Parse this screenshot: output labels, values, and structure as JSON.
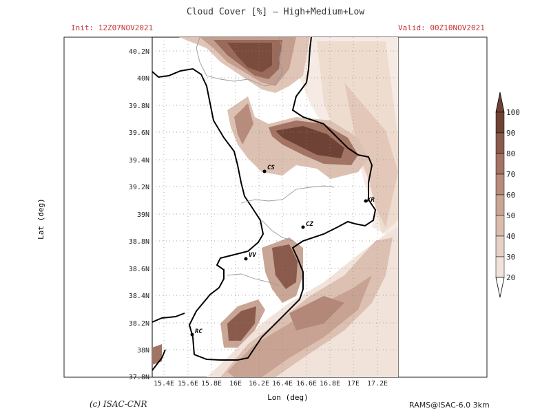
{
  "header": {
    "title": "Cloud Cover [%] — High+Medium+Low",
    "init": "Init: 12Z07NOV2021",
    "valid": "Valid: 00Z10NOV2021"
  },
  "axes": {
    "xlabel": "Lon (deg)",
    "ylabel": "Lat (deg)",
    "lon_ticks": [
      "15.4E",
      "15.6E",
      "15.8E",
      "16E",
      "16.2E",
      "16.4E",
      "16.6E",
      "16.8E",
      "17E",
      "17.2E"
    ],
    "lat_ticks": [
      "40.2N",
      "40N",
      "39.8N",
      "39.6N",
      "39.4N",
      "39.2N",
      "39N",
      "38.8N",
      "38.6N",
      "38.4N",
      "38.2N",
      "38N",
      "37.8N"
    ]
  },
  "cities": [
    {
      "label": "CS"
    },
    {
      "label": "KR"
    },
    {
      "label": "CZ"
    },
    {
      "label": "VV"
    },
    {
      "label": "RC"
    }
  ],
  "colorbar": {
    "levels": [
      "100",
      "90",
      "80",
      "70",
      "60",
      "50",
      "40",
      "30",
      "20"
    ],
    "colors": [
      "#6e4336",
      "#8a5a4c",
      "#a37363",
      "#b78c7c",
      "#c9a595",
      "#d9bcae",
      "#e6d1c6",
      "#f1e3da",
      "#faf3ee"
    ]
  },
  "footer": {
    "credit": "(c) ISAC-CNR",
    "model": "RAMS@ISAC-6.0 3km"
  }
}
